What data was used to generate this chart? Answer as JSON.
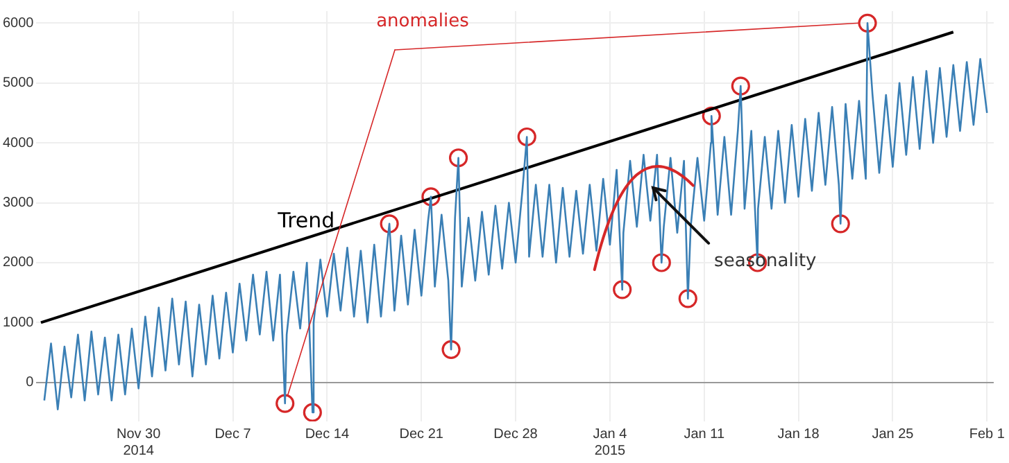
{
  "chart_data": {
    "type": "line",
    "xlim": [
      "2014-11-22T10:00",
      "2015-02-01T12:00"
    ],
    "ylim": [
      -650,
      6200
    ],
    "xticks": [
      {
        "value": "2014-11-30",
        "label": "Nov 30\n2014"
      },
      {
        "value": "2014-12-07",
        "label": "Dec 7"
      },
      {
        "value": "2014-12-14",
        "label": "Dec 14"
      },
      {
        "value": "2014-12-21",
        "label": "Dec 21"
      },
      {
        "value": "2014-12-28",
        "label": "Dec 28"
      },
      {
        "value": "2015-01-04",
        "label": "Jan 4\n2015"
      },
      {
        "value": "2015-01-11",
        "label": "Jan 11"
      },
      {
        "value": "2015-01-18",
        "label": "Jan 18"
      },
      {
        "value": "2015-01-25",
        "label": "Jan 25"
      },
      {
        "value": "2015-02-01",
        "label": "Feb 1"
      }
    ],
    "yticks": [
      0,
      1000,
      2000,
      3000,
      4000,
      5000,
      6000
    ],
    "grid": true,
    "legend": false,
    "marker": "none",
    "line_style": "solid",
    "annotations": [
      {
        "text": "seasonality",
        "x": "2015-01-07",
        "y": 3250
      }
    ],
    "series": [
      {
        "color": "#3a7fb5",
        "x": [
          "2014-11-23T00:00",
          "2014-11-23T12:00",
          "2014-11-24T00:00",
          "2014-11-24T12:00",
          "2014-11-25T00:00",
          "2014-11-25T12:00",
          "2014-11-26T00:00",
          "2014-11-26T12:00",
          "2014-11-27T00:00",
          "2014-11-27T12:00",
          "2014-11-28T00:00",
          "2014-11-28T12:00",
          "2014-11-29T00:00",
          "2014-11-29T12:00",
          "2014-11-30T00:00",
          "2014-11-30T12:00",
          "2014-12-01T00:00",
          "2014-12-01T12:00",
          "2014-12-02T00:00",
          "2014-12-02T12:00",
          "2014-12-03T00:00",
          "2014-12-03T12:00",
          "2014-12-04T00:00",
          "2014-12-04T12:00",
          "2014-12-05T00:00",
          "2014-12-05T12:00",
          "2014-12-06T00:00",
          "2014-12-06T12:00",
          "2014-12-07T00:00",
          "2014-12-07T12:00",
          "2014-12-08T00:00",
          "2014-12-08T12:00",
          "2014-12-09T00:00",
          "2014-12-09T12:00",
          "2014-12-10T00:00",
          "2014-12-10T12:00",
          "2014-12-10T21:00",
          "2014-12-11T00:00",
          "2014-12-11T12:00",
          "2014-12-12T00:00",
          "2014-12-12T12:00",
          "2014-12-12T22:00",
          "2014-12-13T00:00",
          "2014-12-13T12:00",
          "2014-12-14T00:00",
          "2014-12-14T12:00",
          "2014-12-15T00:00",
          "2014-12-15T12:00",
          "2014-12-16T00:00",
          "2014-12-16T12:00",
          "2014-12-17T00:00",
          "2014-12-17T12:00",
          "2014-12-18T00:00",
          "2014-12-18T12:00",
          "2014-12-18T15:00",
          "2014-12-19T00:00",
          "2014-12-19T12:00",
          "2014-12-20T00:00",
          "2014-12-20T12:00",
          "2014-12-21T00:00",
          "2014-12-21T12:00",
          "2014-12-21T17:00",
          "2014-12-22T00:00",
          "2014-12-22T12:00",
          "2014-12-23T00:00",
          "2014-12-23T05:00",
          "2014-12-23T12:00",
          "2014-12-23T18:00",
          "2014-12-24T00:00",
          "2014-12-24T12:00",
          "2014-12-25T00:00",
          "2014-12-25T12:00",
          "2014-12-26T00:00",
          "2014-12-26T12:00",
          "2014-12-27T00:00",
          "2014-12-27T12:00",
          "2014-12-28T00:00",
          "2014-12-28T12:00",
          "2014-12-28T20:00",
          "2014-12-29T00:00",
          "2014-12-29T12:00",
          "2014-12-30T00:00",
          "2014-12-30T12:00",
          "2014-12-31T00:00",
          "2014-12-31T12:00",
          "2015-01-01T00:00",
          "2015-01-01T12:00",
          "2015-01-02T00:00",
          "2015-01-02T12:00",
          "2015-01-03T00:00",
          "2015-01-03T12:00",
          "2015-01-04T00:00",
          "2015-01-04T12:00",
          "2015-01-04T22:00",
          "2015-01-05T00:00",
          "2015-01-05T12:00",
          "2015-01-06T00:00",
          "2015-01-06T12:00",
          "2015-01-07T00:00",
          "2015-01-07T12:00",
          "2015-01-07T20:00",
          "2015-01-08T00:00",
          "2015-01-08T12:00",
          "2015-01-09T00:00",
          "2015-01-09T12:00",
          "2015-01-09T19:00",
          "2015-01-10T00:00",
          "2015-01-10T12:00",
          "2015-01-11T00:00",
          "2015-01-11T12:00",
          "2015-01-11T13:00",
          "2015-01-12T00:00",
          "2015-01-12T12:00",
          "2015-01-13T00:00",
          "2015-01-13T12:00",
          "2015-01-13T17:00",
          "2015-01-14T00:00",
          "2015-01-14T12:00",
          "2015-01-14T23:00",
          "2015-01-15T00:00",
          "2015-01-15T12:00",
          "2015-01-16T00:00",
          "2015-01-16T12:00",
          "2015-01-17T00:00",
          "2015-01-17T12:00",
          "2015-01-18T00:00",
          "2015-01-18T12:00",
          "2015-01-19T00:00",
          "2015-01-19T12:00",
          "2015-01-20T00:00",
          "2015-01-20T12:00",
          "2015-01-21T00:00",
          "2015-01-21T03:00",
          "2015-01-21T12:00",
          "2015-01-22T00:00",
          "2015-01-22T12:00",
          "2015-01-23T00:00",
          "2015-01-23T03:00",
          "2015-01-23T12:00",
          "2015-01-24T00:00",
          "2015-01-24T12:00",
          "2015-01-25T00:00",
          "2015-01-25T12:00",
          "2015-01-26T00:00",
          "2015-01-26T12:00",
          "2015-01-27T00:00",
          "2015-01-27T12:00",
          "2015-01-28T00:00",
          "2015-01-28T12:00",
          "2015-01-29T00:00",
          "2015-01-29T12:00",
          "2015-01-30T00:00",
          "2015-01-30T12:00",
          "2015-01-31T00:00",
          "2015-01-31T12:00",
          "2015-02-01T00:00"
        ],
        "values": [
          -300,
          650,
          -450,
          600,
          -250,
          800,
          -300,
          850,
          -200,
          750,
          -300,
          800,
          -200,
          900,
          -100,
          1100,
          100,
          1250,
          200,
          1400,
          300,
          1350,
          100,
          1300,
          300,
          1450,
          400,
          1500,
          500,
          1650,
          700,
          1800,
          800,
          1850,
          700,
          1800,
          -350,
          800,
          1850,
          900,
          2000,
          -500,
          1000,
          2050,
          1100,
          2150,
          1200,
          2250,
          1100,
          2200,
          1000,
          2300,
          1100,
          2400,
          2650,
          1200,
          2450,
          1300,
          2550,
          1450,
          2700,
          3100,
          1600,
          2800,
          1700,
          550,
          2750,
          3750,
          1600,
          2750,
          1700,
          2850,
          1800,
          2950,
          1900,
          3000,
          2000,
          3200,
          4100,
          2100,
          3300,
          2100,
          3300,
          2000,
          3250,
          2100,
          3200,
          2150,
          3300,
          2200,
          3400,
          2300,
          3550,
          1550,
          2500,
          3700,
          2600,
          3800,
          2700,
          3800,
          2000,
          2600,
          3750,
          2500,
          3700,
          1400,
          2600,
          3750,
          2700,
          4000,
          4450,
          2800,
          4100,
          2800,
          4200,
          4950,
          2900,
          4200,
          2000,
          2900,
          4100,
          2900,
          4200,
          3000,
          4300,
          3100,
          4400,
          3200,
          4500,
          3300,
          4600,
          3300,
          2650,
          4650,
          3400,
          4700,
          3400,
          6000,
          4800,
          3500,
          4800,
          3600,
          5000,
          3800,
          5100,
          3900,
          5200,
          4000,
          5250,
          4100,
          5300,
          4200,
          5350,
          4300,
          5400,
          4500
        ]
      },
      {
        "type": "line",
        "name": "Trend",
        "color": "#000000",
        "x": [
          "2014-11-22T18:00",
          "2015-01-29T12:00"
        ],
        "values": [
          1000,
          5850
        ]
      },
      {
        "type": "scatter",
        "name": "anomalies",
        "color": "#d62728",
        "marker": "circle",
        "x": [
          "2014-12-10T21:00",
          "2014-12-12T22:00",
          "2014-12-18T15:00",
          "2014-12-21T17:00",
          "2014-12-23T05:00",
          "2014-12-23T18:00",
          "2014-12-28T20:00",
          "2015-01-04T22:00",
          "2015-01-07T20:00",
          "2015-01-09T19:00",
          "2015-01-11T13:00",
          "2015-01-13T17:00",
          "2015-01-14T23:00",
          "2015-01-21T03:00",
          "2015-01-23T03:00"
        ],
        "values": [
          -350,
          -500,
          2650,
          3100,
          550,
          3750,
          4100,
          1550,
          2000,
          1400,
          4450,
          4950,
          2000,
          2650,
          6000
        ]
      }
    ]
  }
}
